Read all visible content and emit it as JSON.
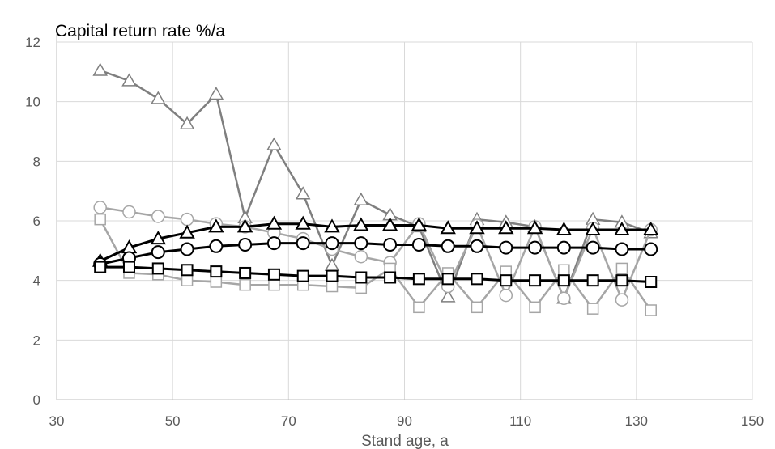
{
  "chart_data": {
    "type": "line",
    "title": "Capital return rate  %/a",
    "xlabel": "Stand age, a",
    "ylabel": "",
    "xlim": [
      30,
      150
    ],
    "ylim": [
      0,
      12
    ],
    "x_ticks": [
      30,
      50,
      70,
      90,
      110,
      130,
      150
    ],
    "y_ticks": [
      0,
      2,
      4,
      6,
      8,
      10,
      12
    ],
    "grid": true,
    "legend": "none",
    "colors": {
      "black": "#000000",
      "gray": "#7f7f7f",
      "light_gray": "#a6a6a6"
    },
    "x": [
      37.5,
      42.5,
      47.5,
      52.5,
      57.5,
      62.5,
      67.5,
      72.5,
      77.5,
      82.5,
      87.5,
      92.5,
      97.5,
      102.5,
      107.5,
      112.5,
      117.5,
      122.5,
      127.5,
      132.5
    ],
    "series": [
      {
        "marker": "triangle",
        "color": "gray",
        "values": [
          11.05,
          10.7,
          10.1,
          9.25,
          10.25,
          6.1,
          8.55,
          6.9,
          4.5,
          6.7,
          6.2,
          5.8,
          3.45,
          6.05,
          5.95,
          5.8,
          3.4,
          6.05,
          5.95,
          5.6
        ]
      },
      {
        "marker": "circle",
        "color": "light_gray",
        "values": [
          6.45,
          6.3,
          6.15,
          6.05,
          5.9,
          5.8,
          5.6,
          5.4,
          5.05,
          4.8,
          4.6,
          5.9,
          3.8,
          5.85,
          3.5,
          5.8,
          3.4,
          5.75,
          3.35,
          5.7
        ]
      },
      {
        "marker": "square",
        "color": "light_gray",
        "values": [
          6.05,
          4.25,
          4.2,
          4.0,
          3.95,
          3.85,
          3.85,
          3.85,
          3.8,
          3.75,
          4.4,
          3.1,
          4.25,
          3.1,
          4.3,
          3.1,
          4.35,
          3.05,
          4.4,
          3.0
        ]
      },
      {
        "marker": "triangle",
        "color": "black",
        "values": [
          4.65,
          5.1,
          5.4,
          5.6,
          5.8,
          5.8,
          5.9,
          5.9,
          5.8,
          5.85,
          5.85,
          5.85,
          5.75,
          5.75,
          5.75,
          5.75,
          5.7,
          5.7,
          5.7,
          5.7
        ]
      },
      {
        "marker": "circle",
        "color": "black",
        "values": [
          4.55,
          4.75,
          4.95,
          5.05,
          5.15,
          5.2,
          5.25,
          5.25,
          5.25,
          5.25,
          5.2,
          5.2,
          5.15,
          5.15,
          5.1,
          5.1,
          5.1,
          5.1,
          5.05,
          5.05
        ]
      },
      {
        "marker": "square",
        "color": "black",
        "values": [
          4.45,
          4.45,
          4.4,
          4.35,
          4.3,
          4.25,
          4.2,
          4.15,
          4.15,
          4.1,
          4.1,
          4.05,
          4.05,
          4.05,
          4.0,
          4.0,
          4.0,
          4.0,
          4.0,
          3.95
        ]
      }
    ]
  }
}
